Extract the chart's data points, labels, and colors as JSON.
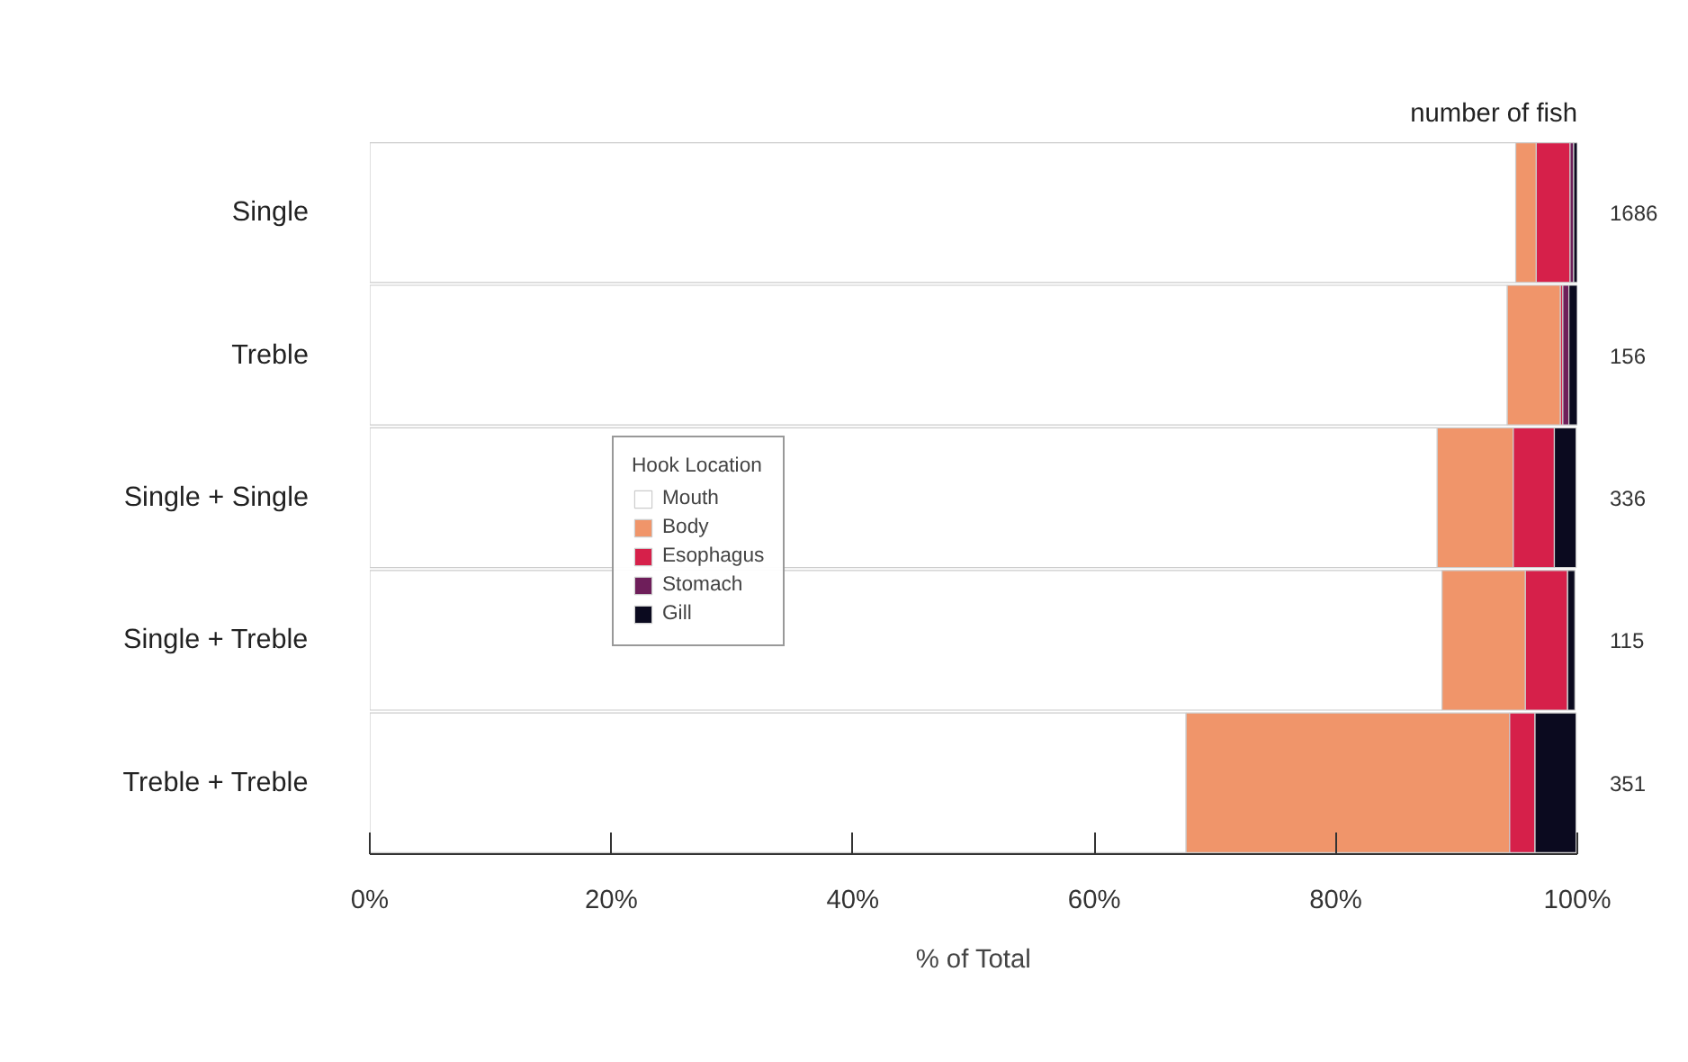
{
  "chart_data": {
    "type": "bar",
    "orientation": "horizontal",
    "stacked": true,
    "categories": [
      "Single",
      "Treble",
      "Single + Single",
      "Single + Treble",
      "Treble + Treble"
    ],
    "series": [
      {
        "name": "Mouth",
        "color": "#ffffff",
        "values": [
          94.9,
          94.2,
          88.4,
          88.8,
          67.6
        ]
      },
      {
        "name": "Body",
        "color": "#f0956a",
        "values": [
          1.7,
          4.4,
          6.3,
          6.9,
          26.8
        ]
      },
      {
        "name": "Esophagus",
        "color": "#d6204a",
        "values": [
          2.8,
          0.2,
          3.4,
          3.5,
          2.1
        ]
      },
      {
        "name": "Stomach",
        "color": "#6e1e5a",
        "values": [
          0.3,
          0.5,
          null,
          null,
          null
        ]
      },
      {
        "name": "Gill",
        "color": "#0b0a1f",
        "values": [
          0.3,
          0.7,
          1.8,
          0.6,
          3.4
        ]
      }
    ],
    "xlim": [
      0,
      100
    ],
    "xticks": [
      {
        "value": 0,
        "label": "0%"
      },
      {
        "value": 20,
        "label": "20%"
      },
      {
        "value": 40,
        "label": "40%"
      },
      {
        "value": 60,
        "label": "60%"
      },
      {
        "value": 80,
        "label": "80%"
      },
      {
        "value": 100,
        "label": "100%"
      }
    ],
    "xlabel": "% of Total",
    "legend_title": "Hook Location",
    "legend": "left",
    "grid": false,
    "annotations": [
      "number of fish",
      "1686",
      "156",
      "336",
      "115",
      "351"
    ]
  }
}
